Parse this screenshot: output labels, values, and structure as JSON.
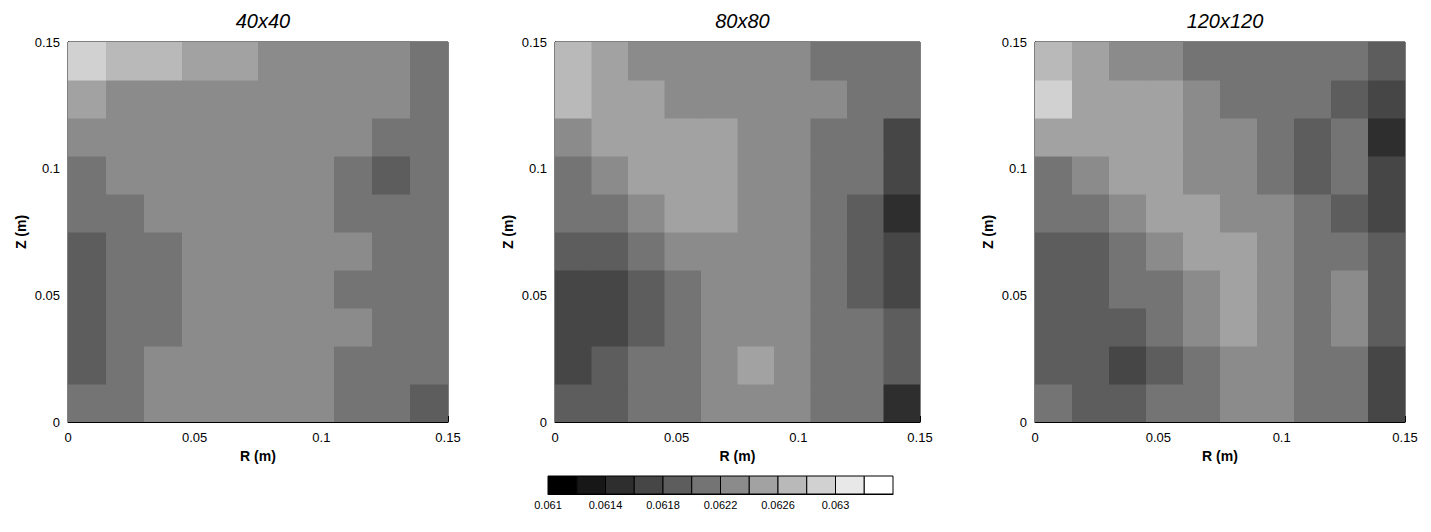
{
  "chart_data": [
    {
      "type": "heatmap",
      "title": "40x40",
      "x_label": "R (m)",
      "y_label": "Z (m)",
      "xlim": [
        0,
        0.15
      ],
      "ylim": [
        0,
        0.15
      ],
      "xticks": [
        0,
        0.05,
        0.1,
        0.15
      ],
      "yticks": [
        0,
        0.05,
        0.1,
        0.15
      ],
      "r_edges": [
        0,
        0.015,
        0.03,
        0.045,
        0.06,
        0.075,
        0.09,
        0.105,
        0.12,
        0.135,
        0.15
      ],
      "z_edges": [
        0,
        0.015,
        0.03,
        0.045,
        0.06,
        0.075,
        0.09,
        0.105,
        0.12,
        0.135,
        0.15
      ],
      "cells": [
        [
          0.0621,
          0.0621,
          0.0622,
          0.0622,
          0.0623,
          0.0623,
          0.0623,
          0.0621,
          0.062,
          0.0619
        ],
        [
          0.0619,
          0.0621,
          0.0622,
          0.0623,
          0.0623,
          0.0623,
          0.0623,
          0.0621,
          0.0621,
          0.062
        ],
        [
          0.0619,
          0.0621,
          0.0621,
          0.0623,
          0.0623,
          0.0623,
          0.0623,
          0.0622,
          0.062,
          0.0621
        ],
        [
          0.0619,
          0.0621,
          0.0621,
          0.0622,
          0.0623,
          0.0623,
          0.0623,
          0.0621,
          0.0621,
          0.062
        ],
        [
          0.0619,
          0.0621,
          0.0621,
          0.0622,
          0.0623,
          0.0623,
          0.0623,
          0.0622,
          0.062,
          0.0621
        ],
        [
          0.0621,
          0.0621,
          0.0622,
          0.0623,
          0.0623,
          0.0623,
          0.0623,
          0.0621,
          0.062,
          0.0621
        ],
        [
          0.0621,
          0.0622,
          0.0623,
          0.0623,
          0.0623,
          0.0623,
          0.0623,
          0.0621,
          0.0619,
          0.062
        ],
        [
          0.0622,
          0.0623,
          0.0623,
          0.0623,
          0.0623,
          0.0623,
          0.0623,
          0.0622,
          0.0621,
          0.0621
        ],
        [
          0.0625,
          0.0623,
          0.0623,
          0.0623,
          0.0623,
          0.0623,
          0.0623,
          0.0623,
          0.0622,
          0.0621
        ],
        [
          0.0628,
          0.0627,
          0.0626,
          0.0625,
          0.0624,
          0.0623,
          0.0623,
          0.0622,
          0.0622,
          0.0621
        ]
      ]
    },
    {
      "type": "heatmap",
      "title": "80x80",
      "x_label": "R (m)",
      "y_label": "Z (m)",
      "xlim": [
        0,
        0.15
      ],
      "ylim": [
        0,
        0.15
      ],
      "xticks": [
        0,
        0.05,
        0.1,
        0.15
      ],
      "yticks": [
        0,
        0.05,
        0.1,
        0.15
      ],
      "r_edges": [
        0,
        0.015,
        0.03,
        0.045,
        0.06,
        0.075,
        0.09,
        0.105,
        0.12,
        0.135,
        0.15
      ],
      "z_edges": [
        0,
        0.015,
        0.03,
        0.045,
        0.06,
        0.075,
        0.09,
        0.105,
        0.12,
        0.135,
        0.15
      ],
      "cells": [
        [
          0.0619,
          0.0619,
          0.062,
          0.0621,
          0.0622,
          0.0623,
          0.0622,
          0.0621,
          0.062,
          0.0615
        ],
        [
          0.0617,
          0.0618,
          0.062,
          0.0621,
          0.0622,
          0.0624,
          0.0623,
          0.0621,
          0.062,
          0.0619
        ],
        [
          0.0616,
          0.0617,
          0.0619,
          0.0621,
          0.0622,
          0.0623,
          0.0623,
          0.0621,
          0.062,
          0.0618
        ],
        [
          0.0616,
          0.0617,
          0.0619,
          0.0621,
          0.0622,
          0.0623,
          0.0623,
          0.0621,
          0.0619,
          0.0616
        ],
        [
          0.0618,
          0.0619,
          0.062,
          0.0622,
          0.0623,
          0.0623,
          0.0623,
          0.062,
          0.0619,
          0.0617
        ],
        [
          0.062,
          0.0621,
          0.0622,
          0.0624,
          0.0625,
          0.0623,
          0.0623,
          0.0621,
          0.0619,
          0.0614
        ],
        [
          0.0621,
          0.0623,
          0.0625,
          0.0625,
          0.0625,
          0.0623,
          0.0623,
          0.0621,
          0.062,
          0.0617
        ],
        [
          0.0623,
          0.0625,
          0.0625,
          0.0625,
          0.0624,
          0.0623,
          0.0623,
          0.0621,
          0.062,
          0.0616
        ],
        [
          0.0627,
          0.0625,
          0.0624,
          0.0623,
          0.0623,
          0.0623,
          0.0622,
          0.0622,
          0.0621,
          0.062
        ],
        [
          0.0626,
          0.0624,
          0.0623,
          0.0623,
          0.0623,
          0.0622,
          0.0622,
          0.0621,
          0.0621,
          0.062
        ]
      ]
    },
    {
      "type": "heatmap",
      "title": "120x120",
      "x_label": "R (m)",
      "y_label": "Z (m)",
      "xlim": [
        0,
        0.15
      ],
      "ylim": [
        0,
        0.15
      ],
      "xticks": [
        0,
        0.05,
        0.1,
        0.15
      ],
      "yticks": [
        0,
        0.05,
        0.1,
        0.15
      ],
      "r_edges": [
        0,
        0.015,
        0.03,
        0.045,
        0.06,
        0.075,
        0.09,
        0.105,
        0.12,
        0.135,
        0.15
      ],
      "z_edges": [
        0,
        0.015,
        0.03,
        0.045,
        0.06,
        0.075,
        0.09,
        0.105,
        0.12,
        0.135,
        0.15
      ],
      "cells": [
        [
          0.062,
          0.0619,
          0.0618,
          0.062,
          0.0621,
          0.0623,
          0.0622,
          0.0621,
          0.062,
          0.0616
        ],
        [
          0.0619,
          0.0618,
          0.0617,
          0.0619,
          0.0621,
          0.0623,
          0.0623,
          0.0621,
          0.062,
          0.0617
        ],
        [
          0.0618,
          0.0618,
          0.0619,
          0.062,
          0.0622,
          0.0624,
          0.0623,
          0.0621,
          0.0622,
          0.0618
        ],
        [
          0.0618,
          0.0619,
          0.062,
          0.0621,
          0.0623,
          0.0624,
          0.0623,
          0.0621,
          0.0622,
          0.0619
        ],
        [
          0.0619,
          0.0619,
          0.0621,
          0.0622,
          0.0624,
          0.0624,
          0.0623,
          0.0621,
          0.062,
          0.0618
        ],
        [
          0.062,
          0.0621,
          0.0622,
          0.0624,
          0.0624,
          0.0623,
          0.0622,
          0.062,
          0.0619,
          0.0617
        ],
        [
          0.0621,
          0.0623,
          0.0624,
          0.0624,
          0.0623,
          0.0622,
          0.0621,
          0.0619,
          0.062,
          0.0617
        ],
        [
          0.0625,
          0.0625,
          0.0625,
          0.0624,
          0.0623,
          0.0622,
          0.0621,
          0.0619,
          0.062,
          0.0615
        ],
        [
          0.0629,
          0.0625,
          0.0625,
          0.0624,
          0.0622,
          0.0621,
          0.0621,
          0.062,
          0.0619,
          0.0617
        ],
        [
          0.0627,
          0.0624,
          0.0623,
          0.0622,
          0.0621,
          0.0621,
          0.062,
          0.062,
          0.062,
          0.0618
        ]
      ]
    }
  ],
  "colorbar": {
    "range": [
      0.061,
      0.0634
    ],
    "ticks": [
      0.061,
      0.0614,
      0.0618,
      0.0622,
      0.0626,
      0.063
    ],
    "levels": [
      0.061,
      0.0612,
      0.0614,
      0.0616,
      0.0618,
      0.062,
      0.0622,
      0.0624,
      0.0626,
      0.0628,
      0.063,
      0.0632,
      0.0634
    ]
  }
}
